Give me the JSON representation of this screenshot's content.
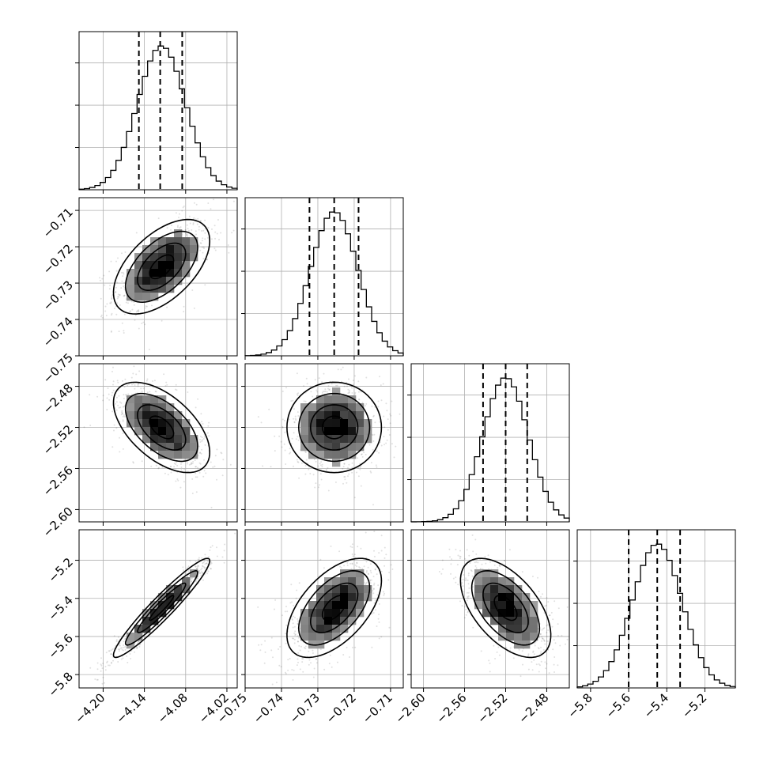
{
  "chart_data": {
    "type": "corner",
    "parameters": [
      {
        "ticks": [
          -4.2,
          -4.14,
          -4.08,
          -4.02
        ],
        "tick_labels": [
          "−4.20",
          "−4.14",
          "−4.08",
          "−4.02"
        ],
        "range": [
          -4.235,
          -4.005
        ],
        "mean": -4.115,
        "std": 0.035,
        "quantiles": [
          -4.148,
          -4.117,
          -4.085
        ]
      },
      {
        "ticks": [
          -0.75,
          -0.74,
          -0.73,
          -0.72,
          -0.71
        ],
        "tick_labels": [
          "−0.75",
          "−0.74",
          "−0.73",
          "−0.72",
          "−0.71"
        ],
        "range": [
          -0.75,
          -0.7065
        ],
        "mean": -0.7255,
        "std": 0.0065,
        "quantiles": [
          -0.7323,
          -0.7255,
          -0.7188
        ]
      },
      {
        "ticks": [
          -2.6,
          -2.56,
          -2.52,
          -2.48
        ],
        "tick_labels": [
          "−2.60",
          "−2.56",
          "−2.52",
          "−2.48"
        ],
        "range": [
          -2.612,
          -2.458
        ],
        "mean": -2.52,
        "std": 0.022,
        "quantiles": [
          -2.542,
          -2.52,
          -2.499
        ]
      },
      {
        "ticks": [
          -5.8,
          -5.6,
          -5.4,
          -5.2
        ],
        "tick_labels": [
          "−5.8",
          "−5.6",
          "−5.4",
          "−5.2"
        ],
        "range": [
          -5.87,
          -5.04
        ],
        "mean": -5.45,
        "std": 0.13,
        "quantiles": [
          -5.6,
          -5.45,
          -5.33
        ]
      }
    ],
    "correlations": [
      [
        1,
        0.55,
        -0.55,
        0.95
      ],
      [
        0.55,
        1,
        0,
        0.55
      ],
      [
        -0.55,
        0,
        1,
        -0.55
      ],
      [
        0.95,
        0.55,
        -0.55,
        1
      ]
    ],
    "hist_peak_labels": [
      "",
      "",
      "",
      ""
    ],
    "contour_levels_sigma": [
      0.5,
      1.0,
      1.5,
      2.0
    ],
    "grid": true,
    "quantile_line_style": "dashed"
  }
}
